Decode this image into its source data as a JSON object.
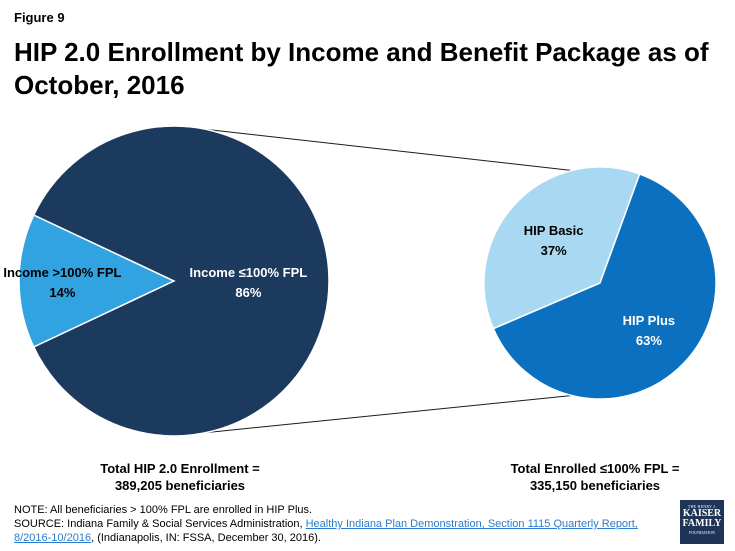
{
  "figure_label": "Figure 9",
  "title": "HIP 2.0 Enrollment by Income and Benefit Package as of October, 2016",
  "chart_data": [
    {
      "type": "pie",
      "name": "total-enrollment",
      "slices": [
        {
          "label": "Income >100% FPL",
          "value": 14,
          "display": "14%",
          "color": "#31a3e0"
        },
        {
          "label": "Income ≤100% FPL",
          "value": 86,
          "display": "86%",
          "color": "#1b3a5e"
        }
      ],
      "caption_line1": "Total HIP 2.0 Enrollment =",
      "caption_line2": "389,205 beneficiaries"
    },
    {
      "type": "pie",
      "name": "enrolled-under-100-fpl",
      "slices": [
        {
          "label": "HIP Basic",
          "value": 37,
          "display": "37%",
          "color": "#a9d8f2"
        },
        {
          "label": "HIP Plus",
          "value": 63,
          "display": "63%",
          "color": "#0a70bf"
        }
      ],
      "caption_line1": "Total Enrolled ≤100% FPL =",
      "caption_line2": "335,150 beneficiaries"
    }
  ],
  "notes": {
    "note": "NOTE:  All beneficiaries > 100% FPL are enrolled in HIP Plus.",
    "source_prefix": "SOURCE: Indiana Family & Social Services Administration,  ",
    "source_link": "Healthy Indiana Plan Demonstration,  Section 1115 Quarterly Report, 8/2016-10/2016",
    "source_suffix": ", (Indianapolis, IN: FSSA, December 30, 2016)."
  },
  "logo": {
    "line1": "THE HENRY J.",
    "line2": "KAISER",
    "line3": "FAMILY",
    "line4": "FOUNDATION"
  }
}
